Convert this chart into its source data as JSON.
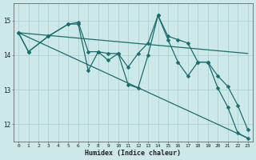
{
  "xlabel": "Humidex (Indice chaleur)",
  "bg_color": "#cce8e8",
  "grid_color": "#aacccc",
  "line_color": "#1a6e6e",
  "xlim": [
    -0.5,
    23.5
  ],
  "ylim": [
    11.5,
    15.5
  ],
  "yticks": [
    12,
    13,
    14,
    15
  ],
  "xticks": [
    0,
    1,
    2,
    3,
    4,
    5,
    6,
    7,
    8,
    9,
    10,
    11,
    12,
    13,
    14,
    15,
    16,
    17,
    18,
    19,
    20,
    21,
    22,
    23
  ],
  "series": [
    {
      "x": [
        0,
        1,
        3,
        5,
        6,
        7,
        8,
        9,
        10,
        11,
        12,
        13,
        14,
        15,
        16,
        17,
        18,
        19,
        20,
        21,
        22,
        23
      ],
      "y": [
        14.65,
        14.1,
        14.55,
        14.9,
        14.9,
        13.55,
        14.1,
        13.85,
        14.05,
        13.15,
        13.05,
        14.0,
        15.15,
        14.45,
        13.8,
        13.4,
        13.8,
        13.8,
        13.05,
        12.5,
        11.75,
        11.6
      ],
      "has_markers": true
    },
    {
      "x": [
        0,
        1,
        3,
        5,
        6,
        7,
        8,
        9,
        10,
        11,
        12,
        13,
        14,
        15,
        16,
        17,
        18,
        19,
        20,
        21,
        22,
        23
      ],
      "y": [
        14.65,
        14.1,
        14.55,
        14.9,
        14.95,
        14.1,
        14.1,
        14.05,
        14.05,
        13.65,
        14.05,
        14.35,
        15.15,
        14.55,
        14.45,
        14.35,
        13.8,
        13.8,
        13.4,
        13.1,
        12.55,
        11.85
      ],
      "has_markers": true
    },
    {
      "x": [
        0,
        23
      ],
      "y": [
        14.65,
        14.05
      ],
      "has_markers": false
    },
    {
      "x": [
        0,
        23
      ],
      "y": [
        14.65,
        11.6
      ],
      "has_markers": false
    }
  ]
}
